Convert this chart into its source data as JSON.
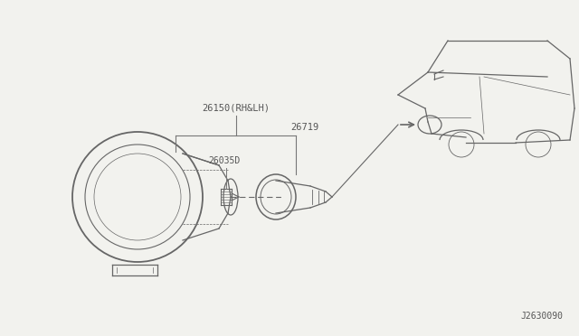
{
  "bg_color": "#f2f2ee",
  "fig_width": 6.4,
  "fig_height": 3.72,
  "dpi": 100,
  "label_26150": "26150(RH&LH)",
  "label_26035": "26035D",
  "label_26719": "26719",
  "label_code": "J2630090",
  "text_color": "#555555",
  "line_color": "#777777",
  "drawing_color": "#666666"
}
